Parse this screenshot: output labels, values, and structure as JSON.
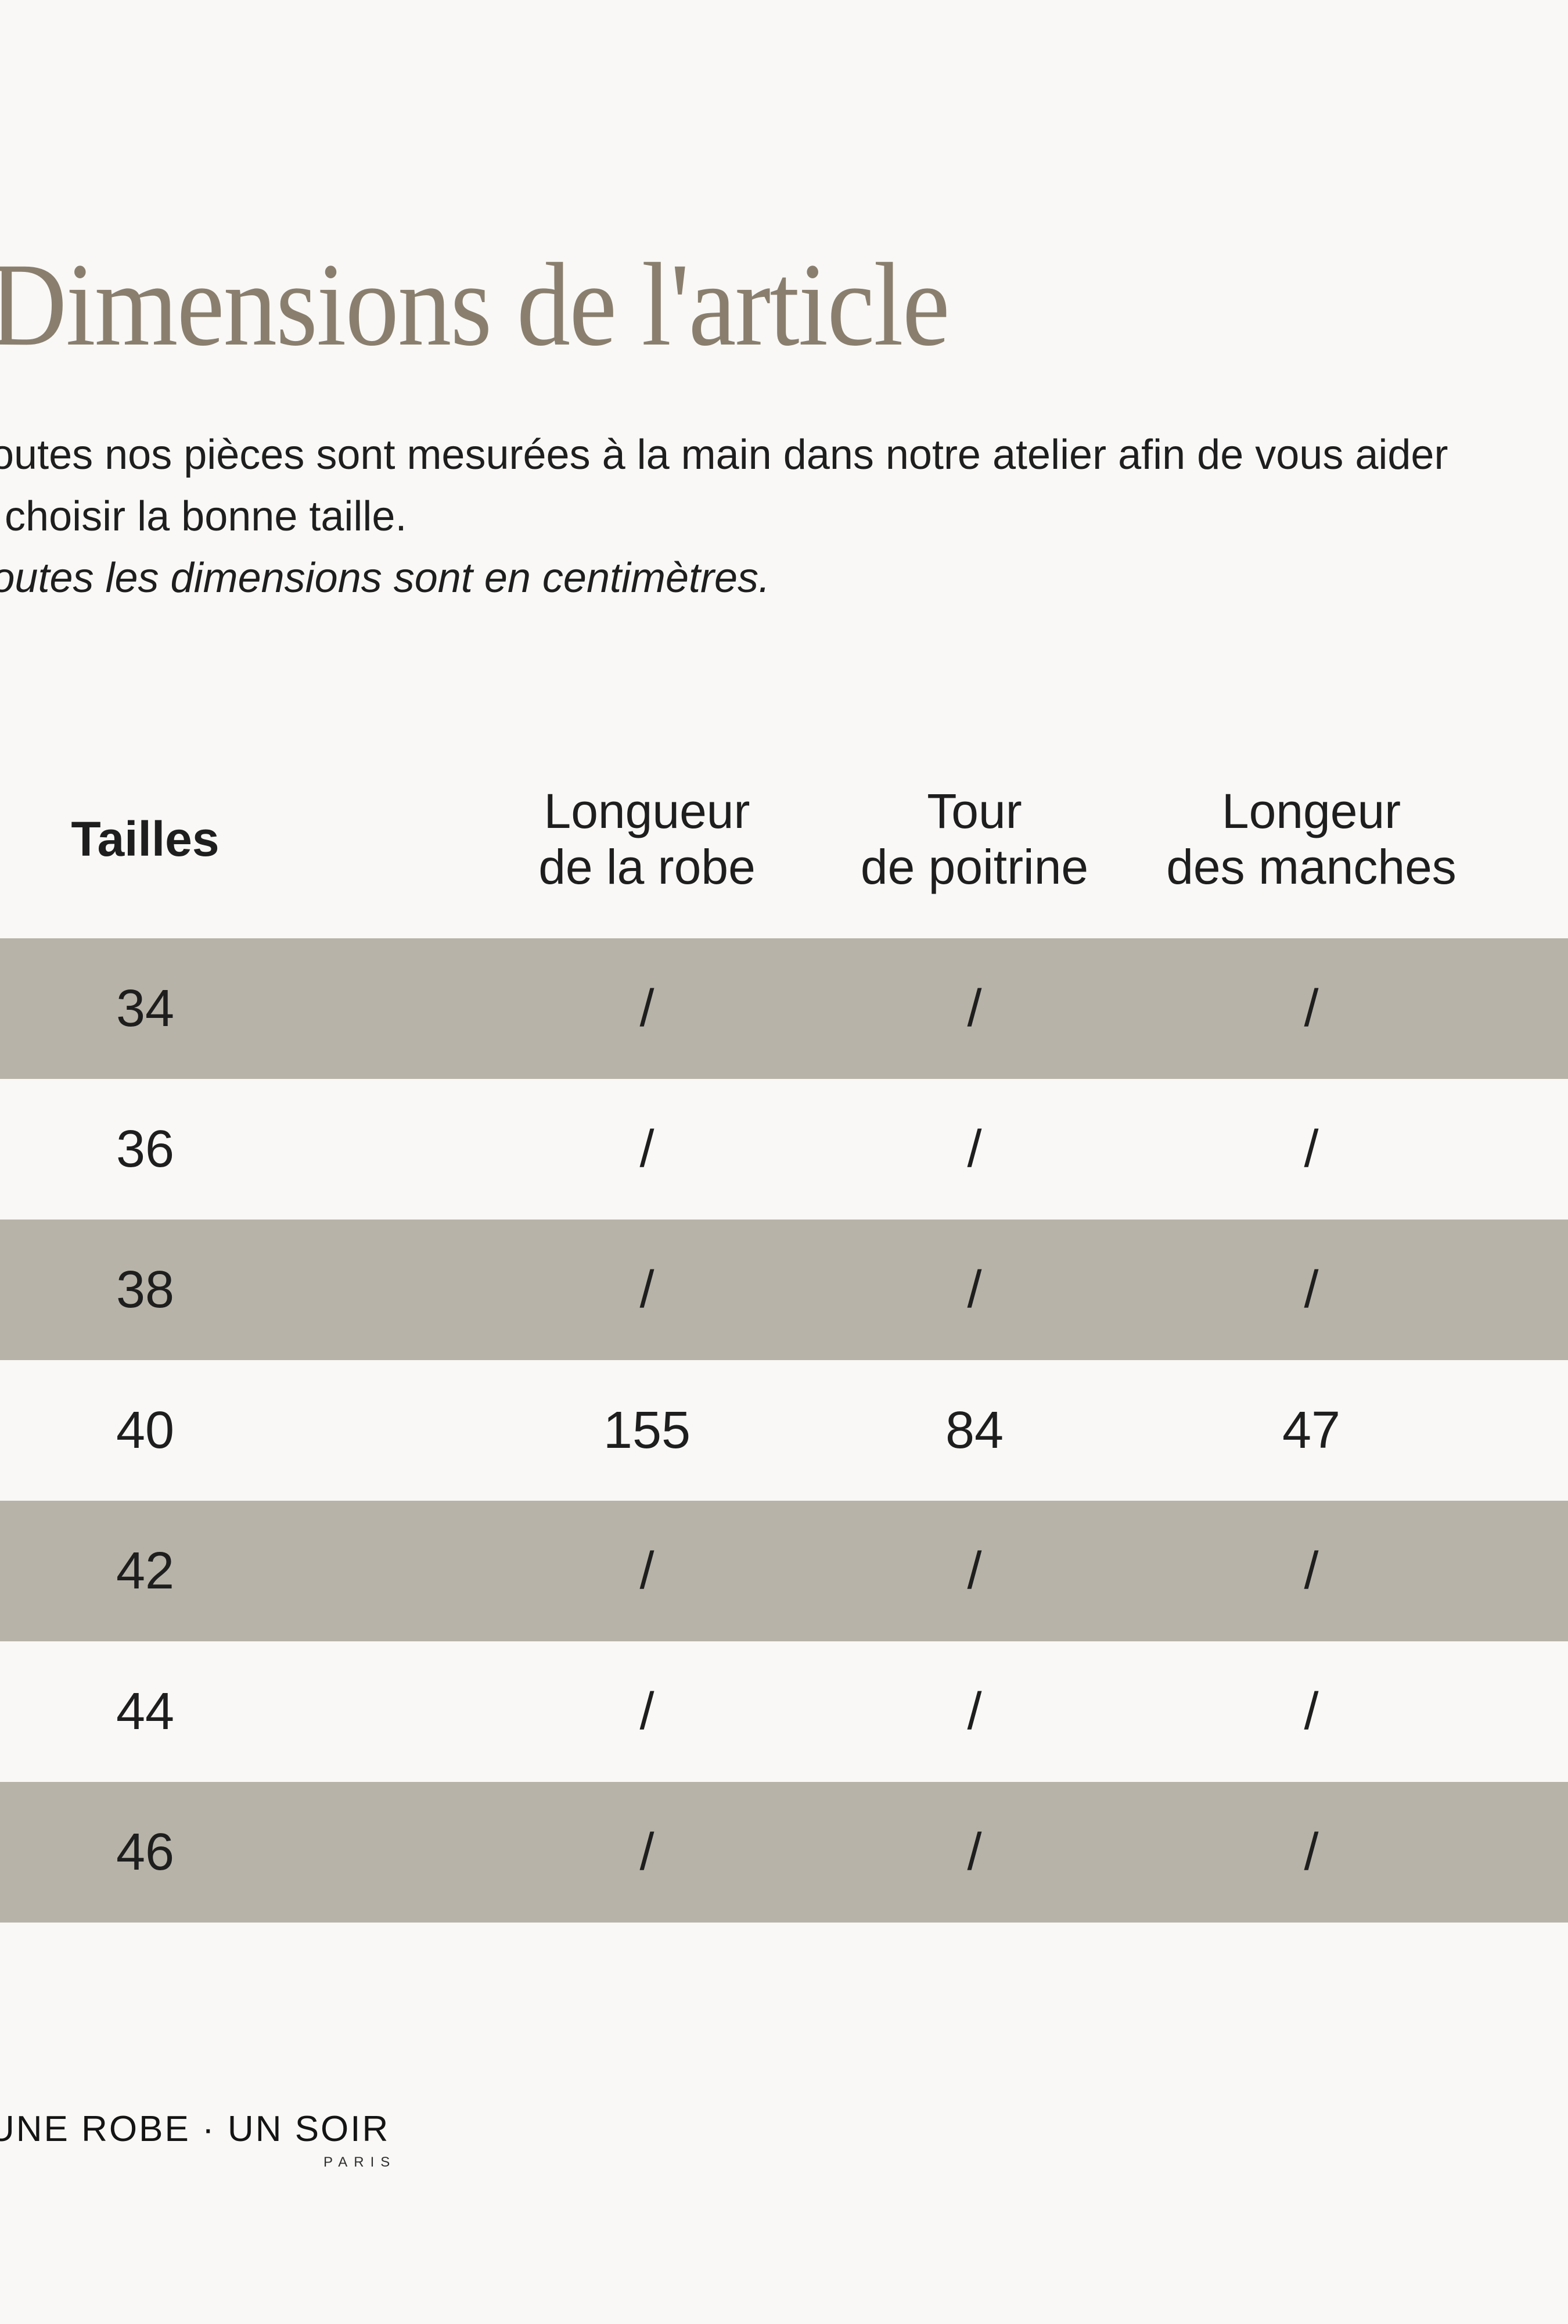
{
  "page": {
    "background_color": "#f9f8f6",
    "title": "Dimensions de l'article",
    "title_color": "#8a7f6e",
    "intro": {
      "line1": "Toutes nos pièces sont mesurées à la main dans notre atelier afin de vous aider",
      "line2": "à choisir la bonne taille.",
      "note": "Toutes les dimensions sont en centimètres."
    }
  },
  "size_table": {
    "band_color": "#b7b3a8",
    "header": {
      "sizes": "Tailles",
      "col2": [
        "Longueur",
        "de la robe"
      ],
      "col3": [
        "Tour",
        "de poitrine"
      ],
      "col4": [
        "Longeur",
        "des manches"
      ]
    },
    "rows": [
      {
        "size": "34",
        "dress_length": "/",
        "bust": "/",
        "sleeves": "/"
      },
      {
        "size": "36",
        "dress_length": "/",
        "bust": "/",
        "sleeves": "/"
      },
      {
        "size": "38",
        "dress_length": "/",
        "bust": "/",
        "sleeves": "/"
      },
      {
        "size": "40",
        "dress_length": "155",
        "bust": "84",
        "sleeves": "47"
      },
      {
        "size": "42",
        "dress_length": "/",
        "bust": "/",
        "sleeves": "/"
      },
      {
        "size": "44",
        "dress_length": "/",
        "bust": "/",
        "sleeves": "/"
      },
      {
        "size": "46",
        "dress_length": "/",
        "bust": "/",
        "sleeves": "/"
      }
    ]
  },
  "footer": {
    "brand": "UNE ROBE · UN SOIR",
    "city": "PARIS"
  }
}
